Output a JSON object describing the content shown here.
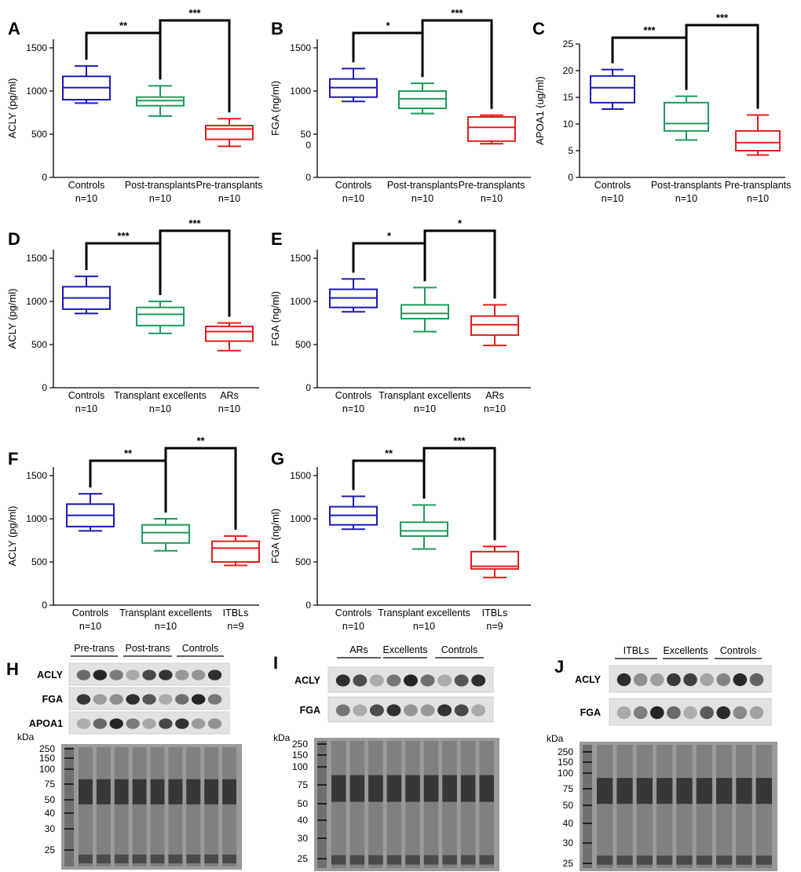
{
  "colors": {
    "blue": "#1a1ab8",
    "green": "#1f9a5c",
    "red": "#e41d1d",
    "black": "#000000"
  },
  "chart_data": [
    {
      "type": "box",
      "panel": "A",
      "ylabel": "ACLY (pg/ml)",
      "ylim": [
        0,
        1600
      ],
      "y_ticks": [
        "0",
        "500",
        "1000",
        "1500"
      ],
      "y_tick_values": [
        0,
        500,
        1000,
        1500
      ],
      "groups": [
        {
          "name": "Controls",
          "n": "n=10",
          "color": "blue",
          "min": 860,
          "q1": 900,
          "median": 1040,
          "q3": 1170,
          "max": 1290
        },
        {
          "name": "Post-transplants",
          "n": "n=10",
          "color": "green",
          "min": 710,
          "q1": 830,
          "median": 890,
          "q3": 930,
          "max": 1060
        },
        {
          "name": "Pre-transplants",
          "n": "n=10",
          "color": "red",
          "min": 360,
          "q1": 440,
          "median": 560,
          "q3": 600,
          "max": 680
        }
      ],
      "significance": [
        {
          "label": "**",
          "pair": [
            0,
            1
          ]
        },
        {
          "label": "***",
          "pair": [
            1,
            2
          ]
        }
      ]
    },
    {
      "type": "box",
      "panel": "B",
      "ylabel": "FGA (ng/ml)",
      "ylim": [
        0,
        1600
      ],
      "y_ticks": [
        "0",
        "50\n0",
        "1000",
        "1500"
      ],
      "y_tick_values": [
        0,
        500,
        1000,
        1500
      ],
      "groups": [
        {
          "name": "Controls",
          "n": "n=10",
          "color": "blue",
          "min": 880,
          "q1": 930,
          "median": 1040,
          "q3": 1140,
          "max": 1260
        },
        {
          "name": "Post-transplants",
          "n": "n=10",
          "color": "green",
          "min": 740,
          "q1": 800,
          "median": 910,
          "q3": 1000,
          "max": 1090
        },
        {
          "name": "Pre-transplants",
          "n": "n=10",
          "color": "red",
          "min": 390,
          "q1": 420,
          "median": 580,
          "q3": 700,
          "max": 720
        }
      ],
      "significance": [
        {
          "label": "*",
          "pair": [
            0,
            1
          ]
        },
        {
          "label": "***",
          "pair": [
            1,
            2
          ]
        }
      ]
    },
    {
      "type": "box",
      "panel": "C",
      "ylabel": "APOA1 (ug/ml)",
      "ylim": [
        0,
        25
      ],
      "y_ticks": [
        "0",
        "5",
        "10",
        "15",
        "20",
        "25"
      ],
      "y_tick_values": [
        0,
        5,
        10,
        15,
        20,
        25
      ],
      "groups": [
        {
          "name": "Controls",
          "n": "n=10",
          "color": "blue",
          "min": 12.8,
          "q1": 14,
          "median": 16.8,
          "q3": 19,
          "max": 20.2
        },
        {
          "name": "Post-transplants",
          "n": "n=10",
          "color": "green",
          "min": 7,
          "q1": 8.7,
          "median": 10.1,
          "q3": 14,
          "max": 15.2
        },
        {
          "name": "Pre-transplants",
          "n": "n=10",
          "color": "red",
          "min": 4.2,
          "q1": 5,
          "median": 6.5,
          "q3": 8.7,
          "max": 11.7
        }
      ],
      "significance": [
        {
          "label": "***",
          "pair": [
            0,
            1
          ]
        },
        {
          "label": "***",
          "pair": [
            1,
            2
          ]
        }
      ]
    },
    {
      "type": "box",
      "panel": "D",
      "ylabel": "ACLY (pg/ml)",
      "ylim": [
        0,
        1600
      ],
      "y_ticks": [
        "0",
        "500",
        "1000",
        "1500"
      ],
      "y_tick_values": [
        0,
        500,
        1000,
        1500
      ],
      "groups": [
        {
          "name": "Controls",
          "n": "n=10",
          "color": "blue",
          "min": 860,
          "q1": 910,
          "median": 1040,
          "q3": 1170,
          "max": 1290
        },
        {
          "name": "Transplant excellents",
          "n": "n=10",
          "color": "green",
          "min": 630,
          "q1": 720,
          "median": 850,
          "q3": 930,
          "max": 1000
        },
        {
          "name": "ARs",
          "n": "n=10",
          "color": "red",
          "min": 430,
          "q1": 540,
          "median": 650,
          "q3": 710,
          "max": 750
        }
      ],
      "significance": [
        {
          "label": "***",
          "pair": [
            0,
            1
          ]
        },
        {
          "label": "***",
          "pair": [
            1,
            2
          ]
        }
      ]
    },
    {
      "type": "box",
      "panel": "E",
      "ylabel": "FGA (ng/ml)",
      "ylim": [
        0,
        1600
      ],
      "y_ticks": [
        "0",
        "500",
        "1000",
        "1500"
      ],
      "y_tick_values": [
        0,
        500,
        1000,
        1500
      ],
      "groups": [
        {
          "name": "Controls",
          "n": "n=10",
          "color": "blue",
          "min": 880,
          "q1": 930,
          "median": 1040,
          "q3": 1140,
          "max": 1260
        },
        {
          "name": "Transplant excellents",
          "n": "n=10",
          "color": "green",
          "min": 650,
          "q1": 800,
          "median": 860,
          "q3": 960,
          "max": 1160
        },
        {
          "name": "ARs",
          "n": "n=10",
          "color": "red",
          "min": 490,
          "q1": 610,
          "median": 730,
          "q3": 830,
          "max": 960
        }
      ],
      "significance": [
        {
          "label": "*",
          "pair": [
            0,
            1
          ]
        },
        {
          "label": "*",
          "pair": [
            1,
            2
          ]
        }
      ]
    },
    {
      "type": "box",
      "panel": "F",
      "ylabel": "ACLY (pg/ml)",
      "ylim": [
        0,
        1600
      ],
      "y_ticks": [
        "0",
        "500",
        "1000",
        "1500"
      ],
      "y_tick_values": [
        0,
        500,
        1000,
        1500
      ],
      "groups": [
        {
          "name": "Controls",
          "n": "n=10",
          "color": "blue",
          "min": 860,
          "q1": 910,
          "median": 1040,
          "q3": 1170,
          "max": 1290
        },
        {
          "name": "Transplant excellents",
          "n": "n=10",
          "color": "green",
          "min": 630,
          "q1": 720,
          "median": 840,
          "q3": 930,
          "max": 1000
        },
        {
          "name": "ITBLs",
          "n": "n=9",
          "color": "red",
          "min": 460,
          "q1": 500,
          "median": 660,
          "q3": 740,
          "max": 800
        }
      ],
      "significance": [
        {
          "label": "**",
          "pair": [
            0,
            1
          ]
        },
        {
          "label": "**",
          "pair": [
            1,
            2
          ]
        }
      ]
    },
    {
      "type": "box",
      "panel": "G",
      "ylabel": "FGA (ng/ml)",
      "ylim": [
        0,
        1600
      ],
      "y_ticks": [
        "0",
        "500",
        "1000",
        "1500"
      ],
      "y_tick_values": [
        0,
        500,
        1000,
        1500
      ],
      "groups": [
        {
          "name": "Controls",
          "n": "n=10",
          "color": "blue",
          "min": 880,
          "q1": 930,
          "median": 1040,
          "q3": 1140,
          "max": 1260
        },
        {
          "name": "Transplant excellents",
          "n": "n=10",
          "color": "green",
          "min": 650,
          "q1": 800,
          "median": 860,
          "q3": 960,
          "max": 1160
        },
        {
          "name": "ITBLs",
          "n": "n=9",
          "color": "red",
          "min": 320,
          "q1": 420,
          "median": 450,
          "q3": 620,
          "max": 680
        }
      ],
      "significance": [
        {
          "label": "**",
          "pair": [
            0,
            1
          ]
        },
        {
          "label": "***",
          "pair": [
            1,
            2
          ]
        }
      ]
    }
  ],
  "blots": [
    {
      "panel": "H",
      "groups": [
        "Pre-trans",
        "Post-trans",
        "Controls"
      ],
      "rows": [
        "ACLY",
        "FGA",
        "APOA1"
      ],
      "kda_label": "kDa",
      "markers": [
        "250",
        "150",
        "100",
        "75",
        "50",
        "40",
        "30",
        "25"
      ]
    },
    {
      "panel": "I",
      "groups": [
        "ARs",
        "Excellents",
        "Controls"
      ],
      "rows": [
        "ACLY",
        "FGA"
      ],
      "kda_label": "kDa",
      "markers": [
        "250",
        "150",
        "100",
        "75",
        "50",
        "40",
        "30",
        "25"
      ]
    },
    {
      "panel": "J",
      "groups": [
        "ITBLs",
        "Excellents",
        "Controls"
      ],
      "rows": [
        "ACLY",
        "FGA"
      ],
      "kda_label": "kDa",
      "markers": [
        "250",
        "150",
        "100",
        "75",
        "50",
        "40",
        "30",
        "25"
      ]
    }
  ]
}
